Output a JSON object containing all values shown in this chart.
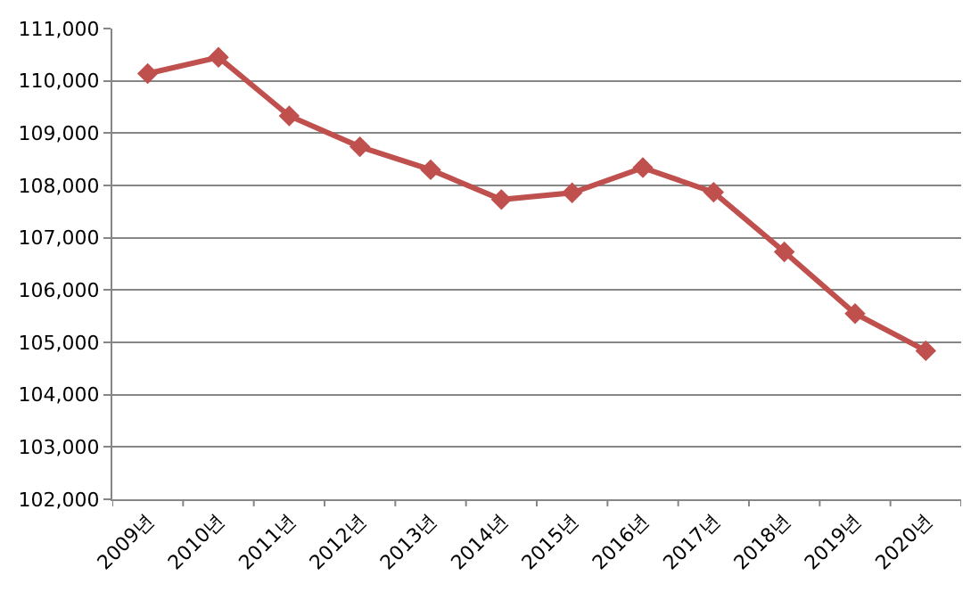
{
  "chart_data": {
    "type": "line",
    "categories": [
      "2009년",
      "2010년",
      "2011년",
      "2012년",
      "2013년",
      "2014년",
      "2015년",
      "2016년",
      "2017년",
      "2018년",
      "2019년",
      "2020년"
    ],
    "series": [
      {
        "color": "#c0504d",
        "values": [
          110140,
          110450,
          109330,
          108740,
          108300,
          107730,
          107860,
          108340,
          107870,
          106730,
          105550,
          104840
        ]
      }
    ],
    "ylim": [
      102000,
      111000
    ],
    "yticks": [
      {
        "value": 102000,
        "label": "102,000"
      },
      {
        "value": 103000,
        "label": "103,000"
      },
      {
        "value": 104000,
        "label": "104,000"
      },
      {
        "value": 105000,
        "label": "105,000"
      },
      {
        "value": 106000,
        "label": "106,000"
      },
      {
        "value": 107000,
        "label": "107,000"
      },
      {
        "value": 108000,
        "label": "108,000"
      },
      {
        "value": 109000,
        "label": "109,000"
      },
      {
        "value": 110000,
        "label": "110,000"
      },
      {
        "value": 111000,
        "label": "111,000"
      }
    ],
    "grid": "y",
    "marker": "diamond",
    "line_style": "solid"
  }
}
